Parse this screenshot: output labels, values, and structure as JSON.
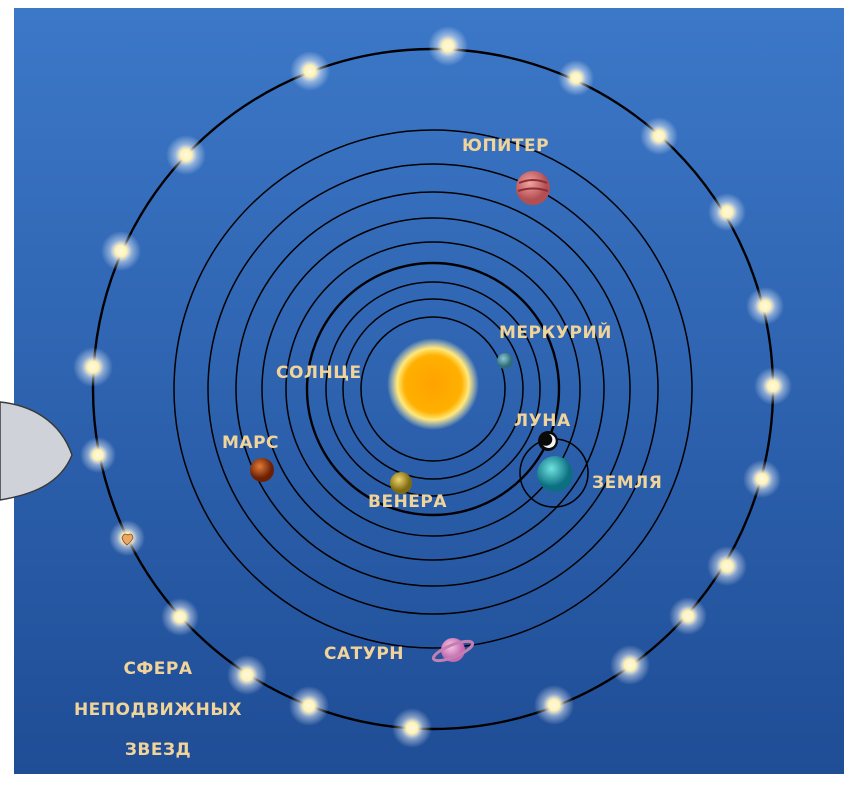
{
  "labels": {
    "jupiter": "ЮПИТЕР",
    "mercury": "МЕРКУРИЙ",
    "sun": "СОЛНЦЕ",
    "moon": "ЛУНА",
    "mars": "МАРС",
    "earth": "ЗЕМЛЯ",
    "venus": "ВЕНЕРА",
    "saturn": "САТУРН",
    "sphere_line1": "СФЕРА",
    "sphere_line2": "НЕПОДВИЖНЫХ",
    "sphere_line3": "ЗВЕЗД"
  },
  "colors": {
    "sky_top": "#3c78c8",
    "sky_bottom": "#1f4d96",
    "label": "#f1d49a",
    "sun": "#ffa800",
    "jupiter": "#c96b6b",
    "mercury": "#3f8e9c",
    "mars": "#a53d12",
    "venus": "#b89a22",
    "earth": "#1aa3b0",
    "saturn": "#d890c8"
  }
}
